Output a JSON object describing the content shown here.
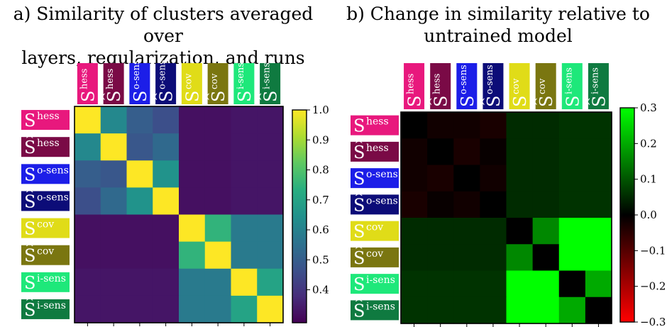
{
  "chart_data": [
    {
      "type": "heatmap",
      "title_lines": [
        "a) Similarity of clusters averaged over",
        "layers, regularization, and runs"
      ],
      "labels": [
        {
          "base": "S",
          "hat": false,
          "sup": "hess",
          "color": "#e8187d"
        },
        {
          "base": "S",
          "hat": true,
          "sup": "hess",
          "color": "#7a0a46"
        },
        {
          "base": "S",
          "hat": false,
          "sup": "o-sens",
          "color": "#1c1ee8"
        },
        {
          "base": "S",
          "hat": true,
          "sup": "o-sens",
          "color": "#0c0c78"
        },
        {
          "base": "S",
          "hat": false,
          "sup": "cov",
          "color": "#e0dc18"
        },
        {
          "base": "S",
          "hat": true,
          "sup": "cov",
          "color": "#7a7610"
        },
        {
          "base": "S",
          "hat": false,
          "sup": "i-sens",
          "color": "#1ee87a"
        },
        {
          "base": "S",
          "hat": true,
          "sup": "i-sens",
          "color": "#0f7a40"
        }
      ],
      "values": [
        [
          1.0,
          0.62,
          0.5,
          0.46,
          0.32,
          0.32,
          0.33,
          0.33
        ],
        [
          0.62,
          1.0,
          0.48,
          0.53,
          0.32,
          0.32,
          0.33,
          0.33
        ],
        [
          0.5,
          0.48,
          1.0,
          0.65,
          0.32,
          0.32,
          0.33,
          0.33
        ],
        [
          0.46,
          0.53,
          0.65,
          1.0,
          0.32,
          0.32,
          0.33,
          0.33
        ],
        [
          0.32,
          0.32,
          0.32,
          0.32,
          1.0,
          0.75,
          0.58,
          0.58
        ],
        [
          0.32,
          0.32,
          0.32,
          0.32,
          0.75,
          1.0,
          0.58,
          0.58
        ],
        [
          0.33,
          0.33,
          0.33,
          0.33,
          0.58,
          0.58,
          1.0,
          0.7
        ],
        [
          0.33,
          0.33,
          0.33,
          0.33,
          0.58,
          0.58,
          0.7,
          1.0
        ]
      ],
      "colormap": "viridis",
      "vmin": 0.29,
      "vmax": 1.0,
      "colorbar_ticks": [
        1.0,
        0.9,
        0.8,
        0.7,
        0.6,
        0.5,
        0.4
      ],
      "colorbar_tick_labels": [
        "1.0",
        "0.9",
        "0.8",
        "0.7",
        "0.6",
        "0.5",
        "0.4"
      ]
    },
    {
      "type": "heatmap",
      "title_lines": [
        "b) Change in similarity relative to",
        "untrained model"
      ],
      "labels": [
        {
          "base": "S",
          "hat": false,
          "sup": "hess",
          "color": "#e8187d"
        },
        {
          "base": "S",
          "hat": true,
          "sup": "hess",
          "color": "#7a0a46"
        },
        {
          "base": "S",
          "hat": false,
          "sup": "o-sens",
          "color": "#1c1ee8"
        },
        {
          "base": "S",
          "hat": true,
          "sup": "o-sens",
          "color": "#0c0c78"
        },
        {
          "base": "S",
          "hat": false,
          "sup": "cov",
          "color": "#e0dc18"
        },
        {
          "base": "S",
          "hat": true,
          "sup": "cov",
          "color": "#7a7610"
        },
        {
          "base": "S",
          "hat": false,
          "sup": "i-sens",
          "color": "#1ee87a"
        },
        {
          "base": "S",
          "hat": true,
          "sup": "i-sens",
          "color": "#0f7a40"
        }
      ],
      "values": [
        [
          0.0,
          -0.02,
          -0.02,
          -0.03,
          0.05,
          0.05,
          0.06,
          0.06
        ],
        [
          -0.02,
          0.0,
          -0.03,
          -0.01,
          0.05,
          0.05,
          0.06,
          0.06
        ],
        [
          -0.02,
          -0.03,
          0.0,
          -0.02,
          0.05,
          0.05,
          0.06,
          0.06
        ],
        [
          -0.03,
          -0.01,
          -0.02,
          0.0,
          0.05,
          0.05,
          0.06,
          0.06
        ],
        [
          0.05,
          0.05,
          0.05,
          0.05,
          0.0,
          0.16,
          0.3,
          0.3
        ],
        [
          0.05,
          0.05,
          0.05,
          0.05,
          0.16,
          0.0,
          0.3,
          0.3
        ],
        [
          0.06,
          0.06,
          0.06,
          0.06,
          0.3,
          0.3,
          0.0,
          0.2
        ],
        [
          0.06,
          0.06,
          0.06,
          0.06,
          0.3,
          0.3,
          0.2,
          0.0
        ]
      ],
      "colormap": "red-black-green",
      "vmin": -0.3,
      "vmax": 0.3,
      "colorbar_ticks": [
        0.3,
        0.2,
        0.1,
        0.0,
        -0.1,
        -0.2,
        -0.3
      ],
      "colorbar_tick_labels": [
        "0.3",
        "0.2",
        "0.1",
        "0.0",
        "−0.1",
        "−0.2",
        "−0.3"
      ]
    }
  ]
}
